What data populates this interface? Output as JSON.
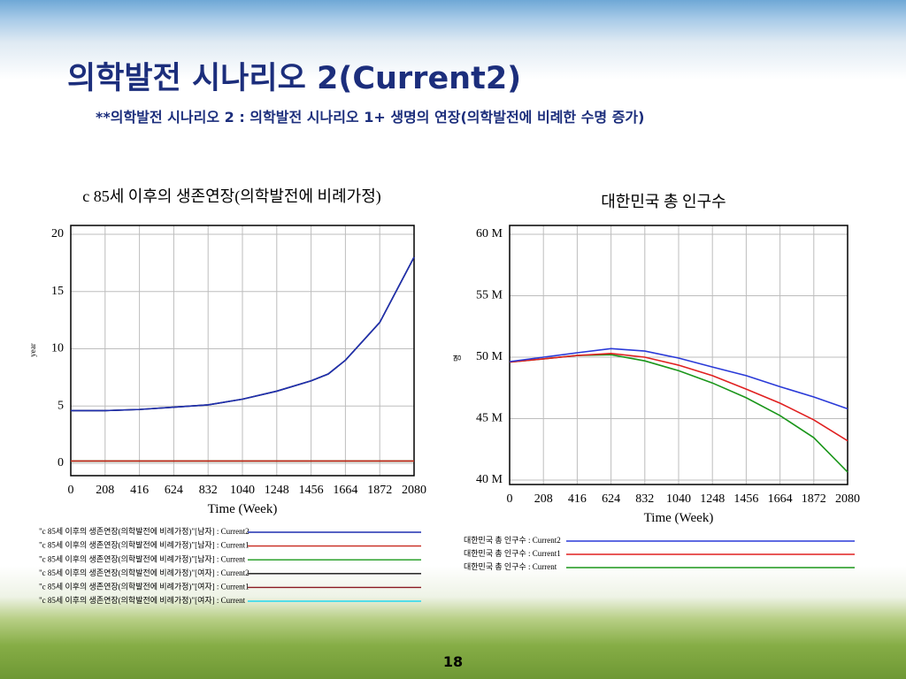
{
  "slide": {
    "title": "의학발전 시나리오 2(Current2)",
    "subtitle": "**의학발전 시나리오 2 : 의학발전 시나리오 1+ 생명의 연장(의학발전에 비례한 수명 증가)",
    "page": "18"
  },
  "chart_data": [
    {
      "type": "line",
      "title": "c 85세 이후의 생존연장(의학발전에 비례가정)",
      "xlabel": "Time (Week)",
      "ylabel": "year",
      "x": [
        0,
        208,
        416,
        624,
        832,
        1040,
        1248,
        1456,
        1560,
        1664,
        1872,
        2080
      ],
      "xlim": [
        0,
        2080
      ],
      "xticks": [
        0,
        208,
        416,
        624,
        832,
        1040,
        1248,
        1456,
        1664,
        1872,
        2080
      ],
      "ylim": [
        0,
        20
      ],
      "yticks": [
        0,
        5,
        10,
        15,
        20
      ],
      "grid": true,
      "series": [
        {
          "name": "\"c 85세 이후의 생존연장(의학발전에 비례가정)\"[남자] : Current2",
          "color": "#1f2fb0",
          "values": [
            4.6,
            4.6,
            4.7,
            4.9,
            5.1,
            5.6,
            6.3,
            7.2,
            7.8,
            9.0,
            12.3,
            18.0
          ]
        },
        {
          "name": "\"c 85세 이후의 생존연장(의학발전에 비례가정)\"[남자] : Current1",
          "color": "#c8281e",
          "values": [
            0.2,
            0.2,
            0.2,
            0.2,
            0.2,
            0.2,
            0.2,
            0.2,
            0.2,
            0.2,
            0.2,
            0.2
          ]
        },
        {
          "name": "\"c 85세 이후의 생존연장(의학발전에 비례가정)\"[남자] : Current",
          "color": "#1a9a1a",
          "values": [
            0.2,
            0.2,
            0.2,
            0.2,
            0.2,
            0.2,
            0.2,
            0.2,
            0.2,
            0.2,
            0.2,
            0.2
          ]
        },
        {
          "name": "\"c 85세 이후의 생존연장(의학발전에 비례가정)\"[여자] : Current2",
          "color": "#111111",
          "values": [
            4.6,
            4.6,
            4.7,
            4.9,
            5.1,
            5.6,
            6.3,
            7.2,
            7.8,
            9.0,
            12.3,
            18.0
          ]
        },
        {
          "name": "\"c 85세 이후의 생존연장(의학발전에 비례가정)\"[여자] : Current1",
          "color": "#8a1a22",
          "values": [
            0.2,
            0.2,
            0.2,
            0.2,
            0.2,
            0.2,
            0.2,
            0.2,
            0.2,
            0.2,
            0.2,
            0.2
          ]
        },
        {
          "name": "\"c 85세 이후의 생존연장(의학발전에 비례가정)\"[여자] : Current",
          "color": "#22d8f0",
          "values": [
            0.2,
            0.2,
            0.2,
            0.2,
            0.2,
            0.2,
            0.2,
            0.2,
            0.2,
            0.2,
            0.2,
            0.2
          ]
        }
      ]
    },
    {
      "type": "line",
      "title": "대한민국 총 인구수",
      "xlabel": "Time (Week)",
      "ylabel": "명",
      "x": [
        0,
        208,
        416,
        624,
        832,
        1040,
        1248,
        1456,
        1664,
        1872,
        2080
      ],
      "xlim": [
        0,
        2080
      ],
      "xticks": [
        0,
        208,
        416,
        624,
        832,
        1040,
        1248,
        1456,
        1664,
        1872,
        2080
      ],
      "ylim": [
        40000000,
        60000000
      ],
      "yticks": [
        {
          "value": 40000000,
          "label": "40 M"
        },
        {
          "value": 45000000,
          "label": "45 M"
        },
        {
          "value": 50000000,
          "label": "50 M"
        },
        {
          "value": 55000000,
          "label": "55 M"
        },
        {
          "value": 60000000,
          "label": "60 M"
        }
      ],
      "grid": true,
      "series": [
        {
          "name": "대한민국 총 인구수 : Current2",
          "color": "#2a3ad8",
          "values": [
            49640000,
            50000000,
            50360000,
            50700000,
            50500000,
            49930000,
            49200000,
            48500000,
            47600000,
            46760000,
            45800000
          ]
        },
        {
          "name": "대한민국 총 인구수 : Current1",
          "color": "#e02020",
          "values": [
            49600000,
            49860000,
            50140000,
            50300000,
            50000000,
            49350000,
            48500000,
            47400000,
            46260000,
            44900000,
            43200000
          ]
        },
        {
          "name": "대한민국 총 인구수 : Current",
          "color": "#1a961a",
          "values": [
            49600000,
            49860000,
            50140000,
            50200000,
            49700000,
            48900000,
            47900000,
            46700000,
            45250000,
            43450000,
            40650000
          ]
        }
      ]
    }
  ]
}
